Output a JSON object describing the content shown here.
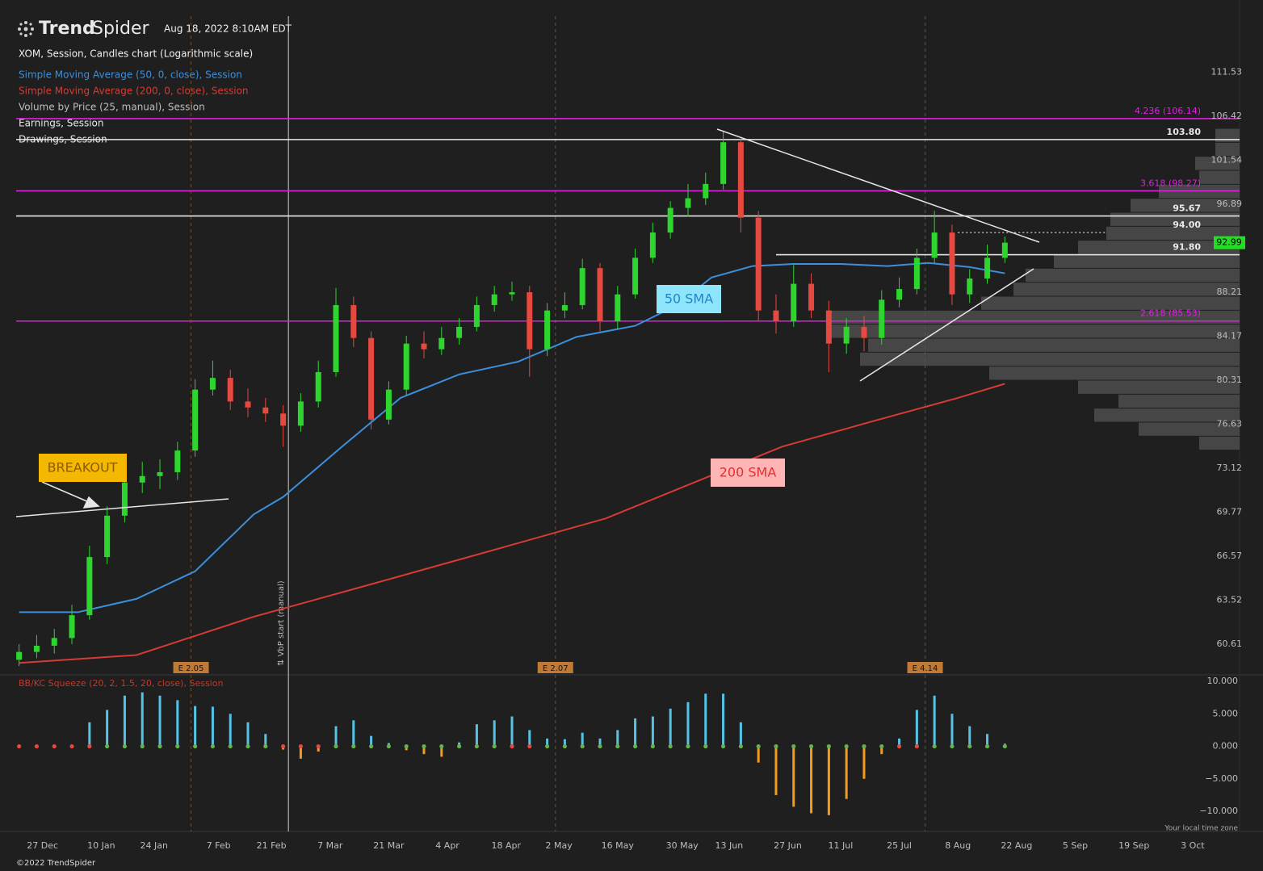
{
  "header": {
    "brand_bold": "Trend",
    "brand_light": "Spider",
    "timestamp": "Aug 18, 2022 8:10AM EDT",
    "copyright": "©2022 TrendSpider"
  },
  "chart_data": [
    {
      "type": "candlestick",
      "title": "XOM, Session, Candles chart (Logarithmic scale)",
      "log_scale": true,
      "x": [
        0,
        3,
        6,
        9,
        12,
        15,
        18,
        21,
        24,
        27,
        30,
        33,
        36,
        39,
        42,
        45,
        48,
        51,
        54,
        57,
        60,
        63,
        66,
        69,
        72,
        75,
        78,
        81,
        84,
        87,
        90,
        93,
        96,
        99,
        102,
        105,
        108,
        111,
        114,
        117,
        120,
        123,
        126,
        129,
        132,
        135,
        138,
        141,
        144,
        147,
        150,
        153,
        156,
        159,
        162,
        165,
        168
      ],
      "open": [
        59.6,
        60.1,
        60.5,
        61.0,
        62.5,
        66.5,
        69.5,
        72.0,
        72.5,
        72.8,
        74.5,
        79.5,
        80.5,
        78.5,
        78.0,
        77.5,
        76.5,
        78.5,
        81.0,
        87.0,
        84.0,
        77.0,
        79.5,
        83.5,
        83.0,
        84.0,
        85.0,
        87.0,
        88.0,
        88.2,
        83.0,
        86.5,
        87.0,
        90.5,
        85.5,
        88.0,
        91.5,
        94.0,
        96.5,
        97.5,
        99.0,
        103.5,
        95.5,
        86.5,
        85.5,
        89.0,
        86.5,
        83.5,
        85.0,
        84.0,
        87.5,
        88.5,
        91.5,
        94.0,
        88.0,
        89.5,
        91.5
      ],
      "high": [
        60.6,
        61.2,
        61.6,
        63.2,
        67.3,
        70.2,
        72.6,
        73.6,
        73.8,
        75.2,
        80.4,
        82.0,
        81.2,
        79.6,
        78.8,
        78.2,
        79.2,
        82.0,
        88.6,
        87.8,
        84.6,
        80.2,
        84.2,
        84.6,
        85.0,
        85.8,
        87.8,
        88.8,
        89.2,
        88.8,
        87.2,
        88.2,
        91.4,
        91.0,
        88.8,
        92.4,
        95.0,
        97.2,
        99.0,
        100.2,
        104.8,
        104.0,
        96.2,
        88.0,
        90.8,
        90.0,
        87.4,
        85.8,
        86.0,
        88.4,
        89.6,
        92.4,
        96.2,
        94.8,
        90.4,
        92.8,
        93.6
      ],
      "low": [
        59.2,
        59.7,
        60.0,
        60.6,
        62.2,
        66.0,
        69.0,
        71.2,
        71.5,
        72.2,
        74.0,
        79.0,
        77.8,
        77.2,
        76.8,
        74.8,
        76.0,
        78.0,
        80.6,
        83.2,
        76.2,
        76.6,
        79.0,
        82.2,
        82.5,
        83.4,
        84.6,
        86.4,
        87.4,
        80.6,
        82.4,
        85.8,
        86.6,
        84.6,
        84.8,
        87.6,
        91.0,
        93.4,
        95.6,
        96.8,
        98.4,
        94.0,
        85.6,
        84.4,
        85.0,
        85.8,
        81.0,
        82.6,
        82.8,
        83.4,
        86.8,
        88.0,
        91.0,
        87.0,
        87.2,
        89.0,
        91.0
      ],
      "close": [
        60.1,
        60.5,
        61.0,
        62.5,
        66.5,
        69.5,
        72.0,
        72.5,
        72.8,
        74.5,
        79.5,
        80.5,
        78.5,
        78.0,
        77.5,
        76.5,
        78.5,
        81.0,
        87.0,
        84.0,
        77.0,
        79.5,
        83.5,
        83.0,
        84.0,
        85.0,
        87.0,
        88.0,
        88.2,
        83.0,
        86.5,
        87.0,
        90.5,
        85.5,
        88.0,
        91.5,
        94.0,
        96.5,
        97.5,
        99.0,
        103.5,
        95.5,
        86.5,
        85.5,
        89.0,
        86.5,
        83.5,
        85.0,
        84.0,
        87.5,
        88.5,
        91.5,
        94.0,
        88.0,
        89.5,
        91.5,
        92.99
      ],
      "up_color": "#2ed52e",
      "down_color": "#e5493f",
      "xlim": [
        -0.5,
        208
      ],
      "xticks": [
        {
          "value": 4,
          "label": "27 Dec"
        },
        {
          "value": 14,
          "label": "10 Jan"
        },
        {
          "value": 23,
          "label": "24 Jan"
        },
        {
          "value": 34,
          "label": "7 Feb"
        },
        {
          "value": 43,
          "label": "21 Feb"
        },
        {
          "value": 53,
          "label": "7 Mar"
        },
        {
          "value": 63,
          "label": "21 Mar"
        },
        {
          "value": 73,
          "label": "4 Apr"
        },
        {
          "value": 83,
          "label": "18 Apr"
        },
        {
          "value": 92,
          "label": "2 May"
        },
        {
          "value": 102,
          "label": "16 May"
        },
        {
          "value": 113,
          "label": "30 May"
        },
        {
          "value": 121,
          "label": "13 Jun"
        },
        {
          "value": 131,
          "label": "27 Jun"
        },
        {
          "value": 140,
          "label": "11 Jul"
        },
        {
          "value": 150,
          "label": "25 Jul"
        },
        {
          "value": 160,
          "label": "8 Aug"
        },
        {
          "value": 170,
          "label": "22 Aug"
        },
        {
          "value": 180,
          "label": "5 Sep"
        },
        {
          "value": 190,
          "label": "19 Sep"
        },
        {
          "value": 200,
          "label": "3 Oct"
        }
      ],
      "ylim": [
        58.7,
        118.4
      ],
      "yticks": [
        111.53,
        106.42,
        101.54,
        96.89,
        88.21,
        84.17,
        80.31,
        76.63,
        73.12,
        69.77,
        66.57,
        63.52,
        60.61
      ],
      "series": [
        {
          "name": "Simple Moving Average (50, 0, close), Session",
          "color": "#3b8fdc",
          "x": [
            0,
            10,
            20,
            30,
            40,
            45,
            55,
            65,
            75,
            85,
            95,
            105,
            112,
            118,
            125,
            132,
            140,
            148,
            155,
            162,
            168
          ],
          "values": [
            62.7,
            62.7,
            63.6,
            65.5,
            69.6,
            70.9,
            74.8,
            78.8,
            80.8,
            81.9,
            84.1,
            85.1,
            86.96,
            89.6,
            90.7,
            90.9,
            90.9,
            90.7,
            91.0,
            90.6,
            90.0
          ]
        },
        {
          "name": "Simple Moving Average (200, 0, close), Session",
          "color": "#d63b35",
          "x": [
            0,
            20,
            40,
            60,
            80,
            100,
            115,
            130,
            145,
            160,
            168
          ],
          "values": [
            59.4,
            59.9,
            62.4,
            64.6,
            66.9,
            69.3,
            72.0,
            74.8,
            76.8,
            78.8,
            80.0
          ]
        }
      ],
      "volume_by_price": {
        "name": "Volume by Price (25, manual), Session",
        "color": "#4a4a4a",
        "range": [
          74.5,
          105.0
        ],
        "values": [
          30,
          30,
          55,
          50,
          100,
          135,
          160,
          165,
          200,
          230,
          265,
          280,
          320,
          505,
          505,
          460,
          470,
          310,
          200,
          150,
          180,
          125,
          50
        ]
      },
      "earnings": {
        "name": "Earnings, Session",
        "color": "#c07a35",
        "events": [
          {
            "x": 29.3,
            "label": "E 2.05"
          },
          {
            "x": 91.4,
            "label": "E 2.07"
          },
          {
            "x": 154.4,
            "label": "E 4.14"
          }
        ]
      },
      "drawings_name": "Drawings, Session",
      "levels": [
        {
          "value": 106.14,
          "label": "4.236 (106.14)",
          "color": "#e020e0"
        },
        {
          "value": 103.8,
          "label": "103.80",
          "color": "#e8e8e8"
        },
        {
          "value": 98.27,
          "label": "3.618 (98.27)",
          "color": "#e020e0"
        },
        {
          "value": 95.67,
          "color": "#e8e8e8"
        },
        {
          "value": 94.0,
          "label": "94.00",
          "color": "#e8e8e8",
          "start_x": 160,
          "style": "dotted"
        },
        {
          "value": 91.8,
          "label": "91.80",
          "color": "#e8e8e8",
          "start_x": 129
        },
        {
          "value": 85.53,
          "label": "2.618 (85.53)",
          "color": "#e020e0"
        }
      ],
      "current_price": {
        "value": 92.99,
        "color": "#22dd22"
      },
      "vbp_start": {
        "x": 45.9,
        "label": "⇅ VbP start (manual)"
      },
      "annotations": [
        "BREAKOUT",
        "50 SMA",
        "200 SMA"
      ]
    },
    {
      "type": "bar",
      "title": "BB/KC Squeeze (20, 2, 1.5, 20, close), Session",
      "x": [
        0,
        3,
        6,
        9,
        12,
        15,
        18,
        21,
        24,
        27,
        30,
        33,
        36,
        39,
        42,
        45,
        48,
        51,
        54,
        57,
        60,
        63,
        66,
        69,
        72,
        75,
        78,
        81,
        84,
        87,
        90,
        93,
        96,
        99,
        102,
        105,
        108,
        111,
        114,
        117,
        120,
        123,
        126,
        129,
        132,
        135,
        138,
        141,
        144,
        147,
        150,
        153,
        156,
        159,
        162,
        165,
        168
      ],
      "values": [
        0,
        0,
        0,
        0,
        3.7,
        5.6,
        7.8,
        8.3,
        7.8,
        7.1,
        6.2,
        6.1,
        5.0,
        3.7,
        1.9,
        -0.5,
        -1.9,
        -0.8,
        3.1,
        4.0,
        1.6,
        0.5,
        -0.6,
        -1.2,
        -1.6,
        0.6,
        3.4,
        4.0,
        4.6,
        2.5,
        1.2,
        1.1,
        2.1,
        1.2,
        2.5,
        4.3,
        4.6,
        5.8,
        6.8,
        8.1,
        8.1,
        3.7,
        -2.5,
        -7.5,
        -9.3,
        -10.3,
        -10.6,
        -8.1,
        -5.0,
        -1.2,
        1.2,
        5.6,
        7.8,
        5.0,
        3.1,
        1.9,
        0.4
      ],
      "positive_color": "#55c3e6",
      "negative_color": "#f39c1f",
      "squeeze_on": [
        true,
        true,
        true,
        true,
        true,
        false,
        false,
        false,
        false,
        false,
        false,
        false,
        false,
        false,
        false,
        true,
        true,
        true,
        false,
        false,
        false,
        false,
        false,
        false,
        false,
        false,
        false,
        false,
        true,
        true,
        false,
        false,
        false,
        false,
        false,
        false,
        false,
        false,
        false,
        false,
        false,
        false,
        false,
        false,
        false,
        false,
        false,
        false,
        false,
        false,
        true,
        true,
        false,
        false,
        false,
        false,
        false
      ],
      "dot_on_color": "#e5493f",
      "dot_off_color": "#6ab04c",
      "xlim": [
        -0.5,
        208
      ],
      "ylim": [
        -13.1,
        10.75
      ],
      "yticks": [
        {
          "value": 10,
          "label": "10.000"
        },
        {
          "value": 5,
          "label": "5.000"
        },
        {
          "value": 0,
          "label": "0.000"
        },
        {
          "value": -5,
          "label": "−5.000"
        },
        {
          "value": -10,
          "label": "−10.000"
        }
      ],
      "timezone_label": "Your local time zone"
    }
  ]
}
